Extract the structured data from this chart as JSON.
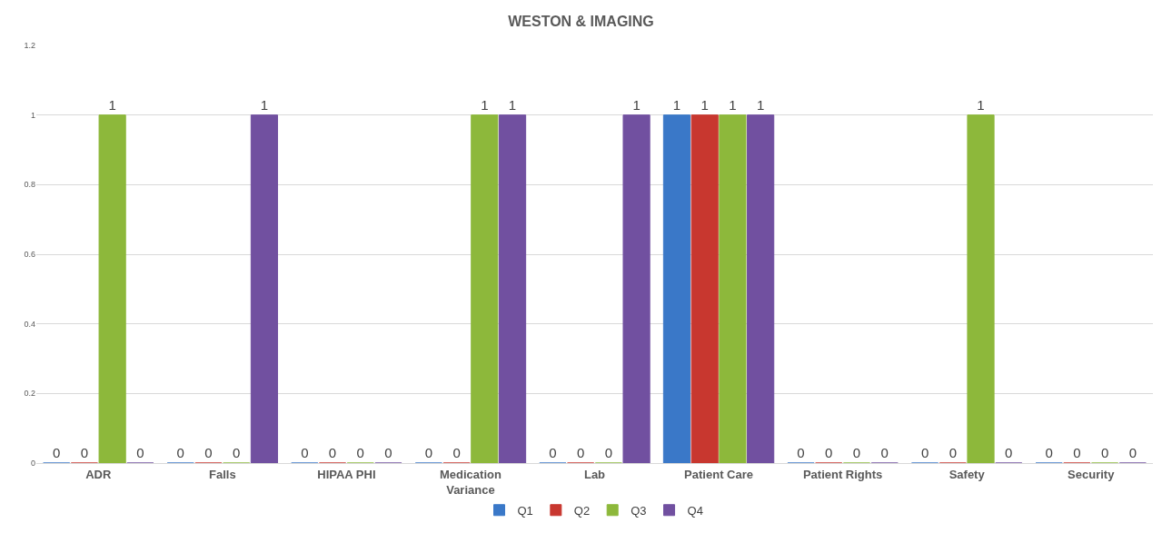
{
  "chart_data": {
    "type": "bar",
    "title": "WESTON & IMAGING",
    "categories": [
      "ADR",
      "Falls",
      "HIPAA PHI",
      "Medication Variance",
      "Lab",
      "Patient Care",
      "Patient Rights",
      "Safety",
      "Security"
    ],
    "series": [
      {
        "name": "Q1",
        "color": "#3a78c8",
        "values": [
          0,
          0,
          0,
          0,
          0,
          1,
          0,
          0,
          0
        ]
      },
      {
        "name": "Q2",
        "color": "#c8372f",
        "values": [
          0,
          0,
          0,
          0,
          0,
          1,
          0,
          0,
          0
        ]
      },
      {
        "name": "Q3",
        "color": "#8db83b",
        "values": [
          1,
          0,
          0,
          1,
          0,
          1,
          0,
          1,
          0
        ]
      },
      {
        "name": "Q4",
        "color": "#7150a0",
        "values": [
          0,
          1,
          0,
          1,
          1,
          1,
          0,
          0,
          0
        ]
      }
    ],
    "ylim": [
      0,
      1.2
    ],
    "yticks": [
      0,
      0.2,
      0.4,
      0.6,
      0.8,
      1,
      1.2
    ],
    "grid": "y",
    "legend": "bottom",
    "data_labels": true
  }
}
